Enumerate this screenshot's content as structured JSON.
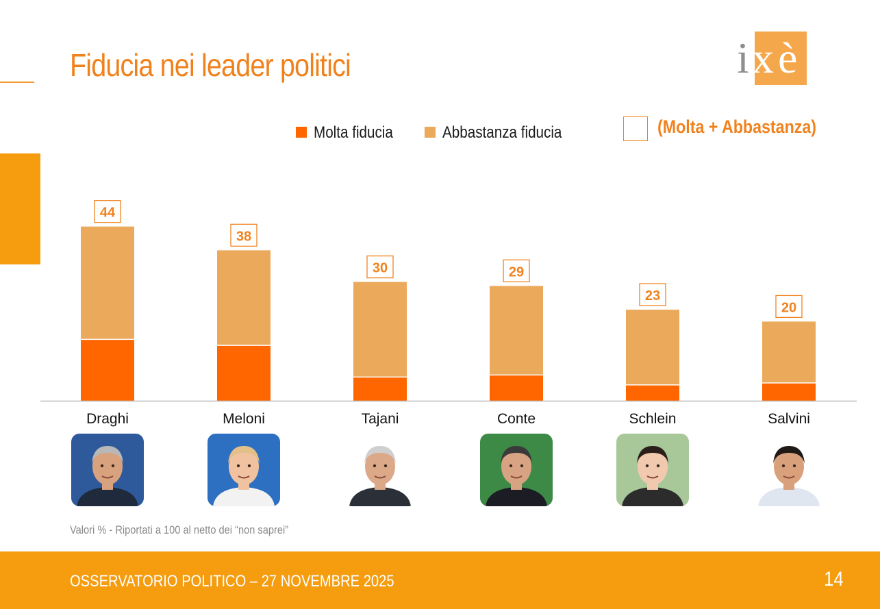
{
  "header": {
    "title": "Fiducia nei leader politici",
    "logo_text": "ixè"
  },
  "legend": {
    "molta": "Molta fiducia",
    "abbastanza": "Abbastanza fiducia",
    "total": "(Molta + Abbastanza)"
  },
  "colors": {
    "molta": "#ff6600",
    "abbastanza": "#eba95c",
    "accent": "#f0821e",
    "footer": "#f59c0f",
    "axis": "#bdbdbd"
  },
  "chart_data": {
    "type": "bar",
    "stacked": true,
    "title": "Fiducia nei leader politici",
    "categories": [
      "Draghi",
      "Meloni",
      "Tajani",
      "Conte",
      "Schlein",
      "Salvini"
    ],
    "series": [
      {
        "name": "Molta fiducia",
        "values": [
          15.5,
          14,
          6,
          6.5,
          4,
          4.5
        ]
      },
      {
        "name": "Abbastanza fiducia",
        "values": [
          28.5,
          24,
          24,
          22.5,
          19,
          15.5
        ]
      }
    ],
    "totals": [
      44,
      38,
      30,
      29,
      23,
      20
    ],
    "total_labels": [
      "44",
      "38",
      "30",
      "29",
      "23",
      "20"
    ],
    "ylim": [
      0,
      44
    ],
    "grid": false,
    "legend_position": "top"
  },
  "photos": [
    {
      "name": "Draghi",
      "bg": "#2e5a9c",
      "skin": "#d9a27e",
      "hair": "#b8b8b8",
      "shirt": "#1f2b3d",
      "icon": "portrait-icon"
    },
    {
      "name": "Meloni",
      "bg": "#2d6fc0",
      "skin": "#f0c2a0",
      "hair": "#e3c08a",
      "shirt": "#f2f2f2",
      "icon": "portrait-icon"
    },
    {
      "name": "Tajani",
      "bg": "#ffffff",
      "skin": "#dba888",
      "hair": "#cfcfcf",
      "shirt": "#2a2f38",
      "icon": "portrait-icon"
    },
    {
      "name": "Conte",
      "bg": "#3d8a46",
      "skin": "#d8a383",
      "hair": "#3a3a3a",
      "shirt": "#1c1c24",
      "icon": "portrait-icon"
    },
    {
      "name": "Schlein",
      "bg": "#a9c89a",
      "skin": "#f1c9ae",
      "hair": "#2a1f1a",
      "shirt": "#2c2c2c",
      "icon": "portrait-icon"
    },
    {
      "name": "Salvini",
      "bg": "#ffffff",
      "skin": "#d9a07c",
      "hair": "#1f1a16",
      "shirt": "#dfe6f0",
      "icon": "portrait-icon"
    }
  ],
  "note": "Valori % - Riportati a 100 al netto dei “non saprei”",
  "footer": {
    "text": "OSSERVATORIO POLITICO – 27 NOVEMBRE 2025",
    "page": "14"
  }
}
